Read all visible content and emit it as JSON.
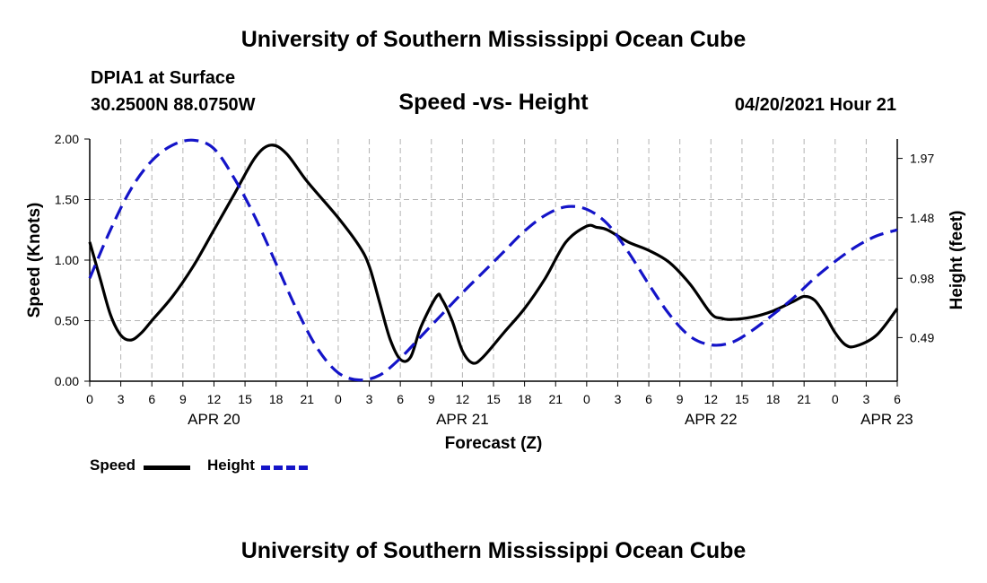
{
  "page": {
    "top_title": "University of Southern Mississippi Ocean Cube",
    "bottom_title": "University of Southern Mississippi Ocean Cube",
    "station": "DPIA1 at Surface",
    "coords": "30.2500N  88.0750W",
    "chart_title": "Speed -vs- Height",
    "timestamp": "04/20/2021 Hour 21"
  },
  "legend": [
    {
      "label": "Speed",
      "color": "#000000",
      "style": "solid"
    },
    {
      "label": "Height",
      "color": "#1414c8",
      "style": "dashed"
    }
  ],
  "chart_data": {
    "type": "line",
    "title": "Speed -vs- Height",
    "xlabel": "Forecast (Z)",
    "ylabel": "Speed (Knots)",
    "y2label": "Height (feet)",
    "xlim": [
      0,
      78
    ],
    "ylim": [
      0,
      2.0
    ],
    "y2lim": [
      0.13,
      2.13
    ],
    "grid": true,
    "x_ticks": [
      {
        "h": 0,
        "label": "0"
      },
      {
        "h": 3,
        "label": "3"
      },
      {
        "h": 6,
        "label": "6"
      },
      {
        "h": 9,
        "label": "9"
      },
      {
        "h": 12,
        "label": "12"
      },
      {
        "h": 15,
        "label": "15"
      },
      {
        "h": 18,
        "label": "18"
      },
      {
        "h": 21,
        "label": "21"
      },
      {
        "h": 24,
        "label": "0"
      },
      {
        "h": 27,
        "label": "3"
      },
      {
        "h": 30,
        "label": "6"
      },
      {
        "h": 33,
        "label": "9"
      },
      {
        "h": 36,
        "label": "12"
      },
      {
        "h": 39,
        "label": "15"
      },
      {
        "h": 42,
        "label": "18"
      },
      {
        "h": 45,
        "label": "21"
      },
      {
        "h": 48,
        "label": "0"
      },
      {
        "h": 51,
        "label": "3"
      },
      {
        "h": 54,
        "label": "6"
      },
      {
        "h": 57,
        "label": "9"
      },
      {
        "h": 60,
        "label": "12"
      },
      {
        "h": 63,
        "label": "15"
      },
      {
        "h": 66,
        "label": "18"
      },
      {
        "h": 69,
        "label": "21"
      },
      {
        "h": 72,
        "label": "0"
      },
      {
        "h": 75,
        "label": "3"
      },
      {
        "h": 78,
        "label": "6"
      }
    ],
    "date_labels": [
      {
        "h": 12,
        "label": "APR 20"
      },
      {
        "h": 36,
        "label": "APR 21"
      },
      {
        "h": 60,
        "label": "APR 22"
      },
      {
        "h": 77,
        "label": "APR 23"
      }
    ],
    "y_ticks": [
      0.0,
      0.5,
      1.0,
      1.5,
      2.0
    ],
    "y_tick_labels": [
      "0.00",
      "0.50",
      "1.00",
      "1.50",
      "2.00"
    ],
    "y2_ticks": [
      0.49,
      0.98,
      1.48,
      1.97
    ],
    "y2_tick_labels": [
      "0.49",
      "0.98",
      "1.48",
      "1.97"
    ],
    "series": [
      {
        "name": "Speed",
        "axis": "left",
        "color": "#000000",
        "x": [
          0,
          1,
          2,
          3,
          4,
          5,
          6,
          8,
          10,
          12,
          14,
          16,
          17.5,
          19,
          21,
          24,
          26,
          27,
          28,
          29,
          30,
          31,
          32,
          33.5,
          34,
          35,
          36,
          37,
          38,
          40,
          42,
          44,
          46,
          48,
          49,
          50,
          52,
          54,
          56,
          58,
          60,
          61,
          62,
          64,
          66,
          68,
          69,
          70,
          71,
          72,
          73,
          74,
          76,
          78
        ],
        "values": [
          1.15,
          0.85,
          0.55,
          0.38,
          0.34,
          0.4,
          0.5,
          0.7,
          0.95,
          1.25,
          1.55,
          1.85,
          1.95,
          1.88,
          1.65,
          1.35,
          1.12,
          0.95,
          0.65,
          0.35,
          0.18,
          0.2,
          0.45,
          0.7,
          0.68,
          0.5,
          0.25,
          0.15,
          0.2,
          0.4,
          0.6,
          0.85,
          1.15,
          1.28,
          1.27,
          1.25,
          1.15,
          1.08,
          0.98,
          0.8,
          0.56,
          0.52,
          0.51,
          0.53,
          0.58,
          0.66,
          0.7,
          0.67,
          0.55,
          0.4,
          0.3,
          0.29,
          0.38,
          0.6
        ]
      },
      {
        "name": "Height",
        "axis": "right",
        "color": "#1414c8",
        "x": [
          0,
          2,
          4,
          6,
          8,
          10,
          12,
          14,
          16,
          18,
          20,
          22,
          24,
          26,
          28,
          30,
          32,
          34,
          36,
          38,
          40,
          42,
          44,
          46,
          48,
          50,
          52,
          54,
          56,
          58,
          60,
          62,
          64,
          66,
          68,
          70,
          72,
          74,
          76,
          78
        ],
        "values": [
          0.98,
          1.38,
          1.72,
          1.95,
          2.08,
          2.12,
          2.05,
          1.8,
          1.48,
          1.1,
          0.72,
          0.4,
          0.2,
          0.14,
          0.18,
          0.32,
          0.5,
          0.68,
          0.86,
          1.03,
          1.2,
          1.37,
          1.5,
          1.57,
          1.55,
          1.43,
          1.2,
          0.93,
          0.68,
          0.5,
          0.43,
          0.45,
          0.55,
          0.68,
          0.82,
          0.98,
          1.12,
          1.24,
          1.33,
          1.38
        ]
      }
    ]
  }
}
